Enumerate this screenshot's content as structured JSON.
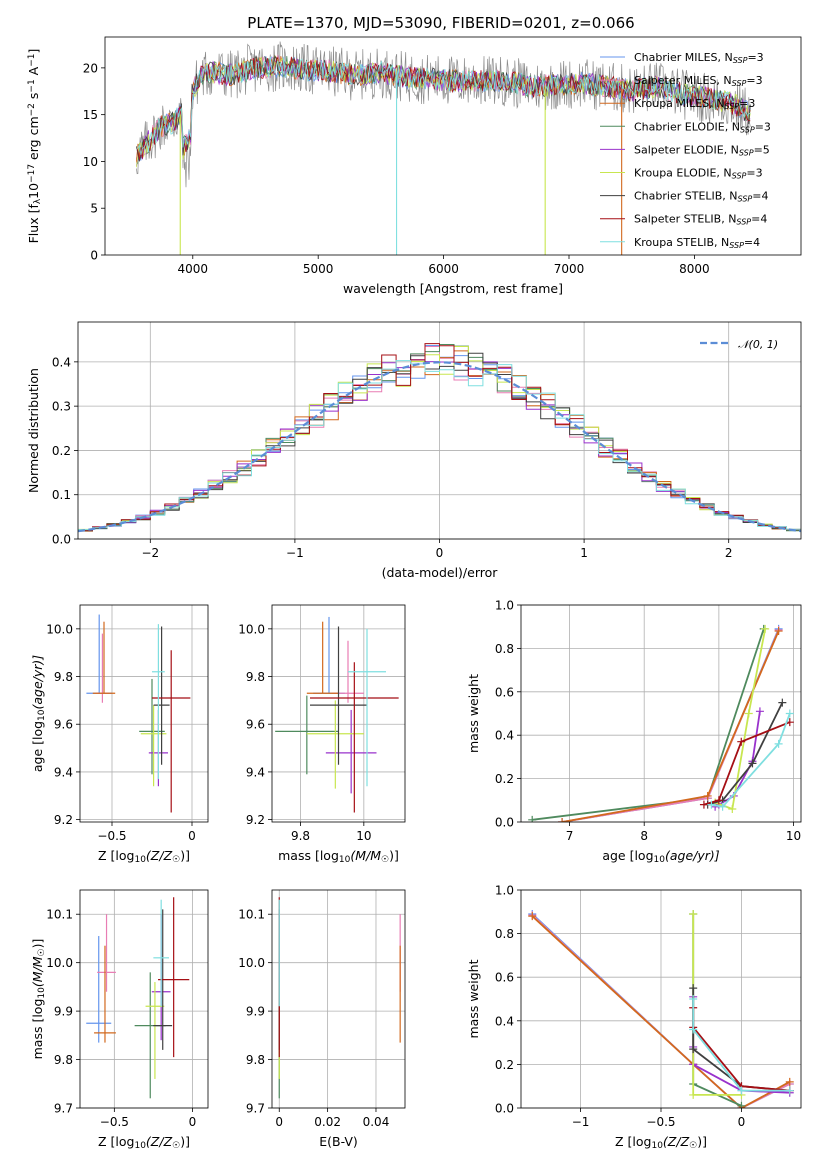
{
  "title": "PLATE=1370, MJD=53090, FIBERID=0201, z=0.066",
  "colors": {
    "chabrier_miles": "#6495ED",
    "salpeter_miles": "#E87DB4",
    "kroupa_miles": "#D2691E",
    "chabrier_elodie": "#4F8A5E",
    "salpeter_elodie": "#9932CC",
    "kroupa_elodie": "#C8E650",
    "chabrier_stelib": "#404040",
    "salpeter_stelib": "#A50F15",
    "kroupa_stelib": "#7FDFE0",
    "normal_line": "#5B8DD6"
  },
  "legend_spectrum": [
    {
      "text": "Chabrier MILES, N",
      "sub": "SSP",
      "suffix": "=3",
      "color": "#6495ED"
    },
    {
      "text": "Salpeter MILES, N",
      "sub": "SSP",
      "suffix": "=3",
      "color": "#E87DB4"
    },
    {
      "text": "Kroupa MILES, N",
      "sub": "SSP",
      "suffix": "=3",
      "color": "#D2691E"
    },
    {
      "text": "Chabrier ELODIE, N",
      "sub": "SSP",
      "suffix": "=3",
      "color": "#4F8A5E"
    },
    {
      "text": "Salpeter ELODIE, N",
      "sub": "SSP",
      "suffix": "=5",
      "color": "#9932CC"
    },
    {
      "text": "Kroupa ELODIE, N",
      "sub": "SSP",
      "suffix": "=3",
      "color": "#C8E650"
    },
    {
      "text": "Chabrier STELIB, N",
      "sub": "SSP",
      "suffix": "=4",
      "color": "#404040"
    },
    {
      "text": "Salpeter STELIB, N",
      "sub": "SSP",
      "suffix": "=4",
      "color": "#A50F15"
    },
    {
      "text": "Kroupa STELIB, N",
      "sub": "SSP",
      "suffix": "=4",
      "color": "#7FDFE0"
    }
  ],
  "legend_hist": {
    "text": "𝒩(0, 1)"
  },
  "chart_data": [
    {
      "id": "spectrum",
      "type": "line",
      "xlabel": "wavelength [Angstrom, rest frame]",
      "ylabel_parts": [
        "Flux [f",
        "λ",
        "10",
        "−17",
        " erg cm",
        "−2",
        " s",
        "−1",
        " A",
        "−1",
        "]"
      ],
      "xlim": [
        3300,
        8850
      ],
      "ylim": [
        0,
        23.3
      ],
      "xticks": [
        4000,
        5000,
        6000,
        7000,
        8000
      ],
      "yticks": [
        0,
        5,
        10,
        15,
        20
      ],
      "continuum": {
        "x": [
          3550,
          3650,
          3750,
          3850,
          3950,
          4050,
          4150,
          4300,
          4500,
          4700,
          4900,
          5100,
          5300,
          5500,
          5700,
          5900,
          6100,
          6300,
          6500,
          6700,
          6900,
          7100,
          7300,
          7500,
          7700,
          7900,
          8100,
          8300,
          8450
        ],
        "y": [
          10.5,
          12.2,
          13.8,
          14.2,
          15.8,
          19.0,
          19.6,
          19.2,
          20.0,
          20.2,
          19.8,
          19.6,
          19.2,
          19.5,
          19.0,
          18.8,
          18.6,
          18.6,
          18.6,
          18.0,
          18.2,
          18.4,
          18.0,
          17.6,
          18.0,
          17.2,
          16.8,
          16.2,
          15.0
        ]
      },
      "dips": [
        {
          "x": 3900,
          "y": 0,
          "color": "#C8E650"
        },
        {
          "x": 5625,
          "y": 0,
          "color": "#7FDFE0"
        },
        {
          "x": 6810,
          "y": 0,
          "color": "#C8E650"
        },
        {
          "x": 7420,
          "y": 0,
          "color": "#D2691E"
        }
      ]
    },
    {
      "id": "residuals",
      "type": "bar",
      "xlabel": "(data-model)/error",
      "ylabel": "Normed distribution",
      "xlim": [
        -2.5,
        2.5
      ],
      "ylim": [
        0,
        0.49
      ],
      "xticks": [
        -2,
        -1,
        0,
        1,
        2
      ],
      "yticks": [
        0.0,
        0.1,
        0.2,
        0.3,
        0.4
      ],
      "bin_width": 0.1,
      "normal": {
        "mu": 0,
        "sigma": 1
      }
    },
    {
      "id": "age_vs_z",
      "type": "scatter",
      "xlabel_parts": [
        "Z [log",
        "10",
        "(Z/Z",
        "☉",
        ")]"
      ],
      "ylabel_parts": [
        "age  [log",
        "10",
        "(age/yr)]"
      ],
      "xlim": [
        -0.7,
        0.1
      ],
      "ylim": [
        9.19,
        10.1
      ],
      "xticks": [
        -0.5,
        0.0
      ],
      "yticks": [
        9.2,
        9.4,
        9.6,
        9.8,
        10.0
      ],
      "points": [
        {
          "x": -0.58,
          "y": 9.73,
          "xerr": 0.08,
          "yerr": [
            0.0,
            0.33
          ],
          "color": "#6495ED"
        },
        {
          "x": -0.56,
          "y": 9.73,
          "xerr": 0.04,
          "yerr": [
            0.04,
            0.25
          ],
          "color": "#E87DB4"
        },
        {
          "x": -0.55,
          "y": 9.73,
          "xerr": 0.07,
          "yerr": [
            0.0,
            0.3
          ],
          "color": "#D2691E"
        },
        {
          "x": -0.25,
          "y": 9.57,
          "xerr": 0.08,
          "yerr": [
            0.18,
            0.22
          ],
          "color": "#4F8A5E"
        },
        {
          "x": -0.21,
          "y": 9.48,
          "xerr": 0.06,
          "yerr": [
            0.14,
            0.18
          ],
          "color": "#9932CC"
        },
        {
          "x": -0.24,
          "y": 9.56,
          "xerr": 0.08,
          "yerr": [
            0.22,
            0.12
          ],
          "color": "#C8E650"
        },
        {
          "x": -0.19,
          "y": 9.68,
          "xerr": 0.05,
          "yerr": [
            0.25,
            0.33
          ],
          "color": "#404040"
        },
        {
          "x": -0.13,
          "y": 9.71,
          "xerr": 0.12,
          "yerr": [
            0.48,
            0.2
          ],
          "color": "#A50F15"
        },
        {
          "x": -0.21,
          "y": 9.82,
          "xerr": 0.04,
          "yerr": [
            0.45,
            0.2
          ],
          "color": "#7FDFE0"
        }
      ]
    },
    {
      "id": "age_vs_mass",
      "type": "scatter",
      "xlabel_parts": [
        "mass [log",
        "10",
        "(M/M",
        "☉",
        ")]"
      ],
      "xlim": [
        9.71,
        10.13
      ],
      "ylim": [
        9.19,
        10.1
      ],
      "xticks": [
        9.8,
        10.0
      ],
      "yticks": [
        9.2,
        9.4,
        9.6,
        9.8,
        10.0
      ],
      "points": [
        {
          "x": 9.89,
          "y": 9.73,
          "xerr": 0.05,
          "yerr": [
            0.0,
            0.32
          ],
          "color": "#6495ED"
        },
        {
          "x": 9.95,
          "y": 9.73,
          "xerr": 0.05,
          "yerr": [
            0.04,
            0.22
          ],
          "color": "#E87DB4"
        },
        {
          "x": 9.87,
          "y": 9.73,
          "xerr": 0.05,
          "yerr": [
            0.0,
            0.3
          ],
          "color": "#D2691E"
        },
        {
          "x": 9.82,
          "y": 9.57,
          "xerr": 0.1,
          "yerr": [
            0.18,
            0.15
          ],
          "color": "#4F8A5E"
        },
        {
          "x": 9.96,
          "y": 9.48,
          "xerr": 0.08,
          "yerr": [
            0.17,
            0.18
          ],
          "color": "#9932CC"
        },
        {
          "x": 9.91,
          "y": 9.56,
          "xerr": 0.09,
          "yerr": [
            0.23,
            0.14
          ],
          "color": "#C8E650"
        },
        {
          "x": 9.92,
          "y": 9.68,
          "xerr": 0.09,
          "yerr": [
            0.25,
            0.33
          ],
          "color": "#404040"
        },
        {
          "x": 9.97,
          "y": 9.71,
          "xerr": 0.14,
          "yerr": [
            0.48,
            0.15
          ],
          "color": "#A50F15"
        },
        {
          "x": 10.01,
          "y": 9.82,
          "xerr": 0.06,
          "yerr": [
            0.48,
            0.18
          ],
          "color": "#7FDFE0"
        }
      ]
    },
    {
      "id": "weight_vs_age",
      "type": "line",
      "xlabel_parts": [
        "age  [log",
        "10",
        "(age/yr)]"
      ],
      "ylabel": "mass weight",
      "xlim": [
        6.35,
        10.1
      ],
      "ylim": [
        0,
        1.0
      ],
      "xticks": [
        7,
        8,
        9,
        10
      ],
      "yticks": [
        0.0,
        0.2,
        0.4,
        0.6,
        0.8,
        1.0
      ],
      "series": [
        {
          "color": "#4F8A5E",
          "x": [
            6.5,
            8.85,
            9.6
          ],
          "y": [
            0.01,
            0.11,
            0.89
          ]
        },
        {
          "color": "#6495ED",
          "x": [
            6.9,
            8.85,
            9.8
          ],
          "y": [
            0.0,
            0.11,
            0.89
          ]
        },
        {
          "color": "#E87DB4",
          "x": [
            6.9,
            8.85,
            9.8
          ],
          "y": [
            0.0,
            0.11,
            0.885
          ]
        },
        {
          "color": "#D2691E",
          "x": [
            6.9,
            8.85,
            9.8
          ],
          "y": [
            0.0,
            0.12,
            0.88
          ]
        },
        {
          "color": "#9932CC",
          "x": [
            8.95,
            9.0,
            9.2,
            9.45,
            9.55
          ],
          "y": [
            0.07,
            0.08,
            0.12,
            0.28,
            0.51
          ]
        },
        {
          "color": "#C8E650",
          "x": [
            8.95,
            9.18,
            9.4,
            9.62
          ],
          "y": [
            0.09,
            0.06,
            0.5,
            0.89
          ]
        },
        {
          "color": "#404040",
          "x": [
            8.85,
            9.05,
            9.45,
            9.85
          ],
          "y": [
            0.08,
            0.1,
            0.27,
            0.55
          ]
        },
        {
          "color": "#A50F15",
          "x": [
            8.8,
            9.0,
            9.3,
            9.95
          ],
          "y": [
            0.08,
            0.1,
            0.37,
            0.46
          ]
        },
        {
          "color": "#7FDFE0",
          "x": [
            8.9,
            9.05,
            9.8,
            9.95
          ],
          "y": [
            0.08,
            0.07,
            0.36,
            0.5
          ]
        }
      ]
    },
    {
      "id": "mass_vs_z",
      "type": "scatter",
      "xlabel_parts": [
        "Z [log",
        "10",
        "(Z/Z",
        "☉",
        ")]"
      ],
      "ylabel_parts": [
        "mass [log",
        "10",
        "(M/M",
        "☉",
        ")]"
      ],
      "xlim": [
        -0.72,
        0.1
      ],
      "ylim": [
        9.7,
        10.15
      ],
      "xticks": [
        -0.5,
        0.0
      ],
      "yticks": [
        9.7,
        9.8,
        9.9,
        10.0,
        10.1
      ],
      "points": [
        {
          "x": -0.6,
          "y": 9.875,
          "xerr": 0.08,
          "yerr": [
            0.04,
            0.18
          ],
          "color": "#6495ED"
        },
        {
          "x": -0.55,
          "y": 9.98,
          "xerr": 0.06,
          "yerr": [
            0.04,
            0.12
          ],
          "color": "#E87DB4"
        },
        {
          "x": -0.56,
          "y": 9.855,
          "xerr": 0.07,
          "yerr": [
            0.02,
            0.18
          ],
          "color": "#D2691E"
        },
        {
          "x": -0.27,
          "y": 9.87,
          "xerr": 0.1,
          "yerr": [
            0.15,
            0.11
          ],
          "color": "#4F8A5E"
        },
        {
          "x": -0.2,
          "y": 9.94,
          "xerr": 0.06,
          "yerr": [
            0.1,
            0.16
          ],
          "color": "#9932CC"
        },
        {
          "x": -0.24,
          "y": 9.91,
          "xerr": 0.06,
          "yerr": [
            0.15,
            0.05
          ],
          "color": "#C8E650"
        },
        {
          "x": -0.19,
          "y": 9.87,
          "xerr": 0.06,
          "yerr": [
            0.05,
            0.24
          ],
          "color": "#404040"
        },
        {
          "x": -0.12,
          "y": 9.965,
          "xerr": 0.1,
          "yerr": [
            0.16,
            0.17
          ],
          "color": "#A50F15"
        },
        {
          "x": -0.2,
          "y": 10.01,
          "xerr": 0.05,
          "yerr": [
            0.1,
            0.12
          ],
          "color": "#7FDFE0"
        }
      ]
    },
    {
      "id": "mass_vs_ebv",
      "type": "scatter",
      "xlabel": "E(B-V)",
      "xlim": [
        -0.003,
        0.052
      ],
      "ylim": [
        9.7,
        10.15
      ],
      "xticks": [
        0.0,
        0.02,
        0.04
      ],
      "yticks": [
        9.7,
        9.8,
        9.9,
        10.0,
        10.1
      ],
      "points": [
        {
          "x": 0.0,
          "y": 9.875,
          "xerr": 0,
          "yerr": [
            0.04,
            0.18
          ],
          "color": "#6495ED"
        },
        {
          "x": 0.05,
          "y": 9.98,
          "xerr": 0,
          "yerr": [
            0.04,
            0.12
          ],
          "color": "#E87DB4"
        },
        {
          "x": 0.05,
          "y": 9.855,
          "xerr": 0,
          "yerr": [
            0.02,
            0.18
          ],
          "color": "#D2691E"
        },
        {
          "x": 0.0,
          "y": 9.87,
          "xerr": 0,
          "yerr": [
            0.15,
            0.11
          ],
          "color": "#4F8A5E"
        },
        {
          "x": 0.0,
          "y": 9.94,
          "xerr": 0,
          "yerr": [
            0.1,
            0.16
          ],
          "color": "#9932CC"
        },
        {
          "x": 0.0,
          "y": 9.91,
          "xerr": 0,
          "yerr": [
            0.15,
            0.05
          ],
          "color": "#C8E650"
        },
        {
          "x": 0.0,
          "y": 9.87,
          "xerr": 0,
          "yerr": [
            0.05,
            0.24
          ],
          "color": "#404040"
        },
        {
          "x": 0.0,
          "y": 9.965,
          "xerr": 0,
          "yerr": [
            0.16,
            0.17
          ],
          "color": "#A50F15"
        },
        {
          "x": 0.0,
          "y": 10.01,
          "xerr": 0,
          "yerr": [
            0.1,
            0.12
          ],
          "color": "#7FDFE0"
        }
      ]
    },
    {
      "id": "weight_vs_z",
      "type": "line",
      "xlabel_parts": [
        "Z [log",
        "10",
        "(Z/Z",
        "☉",
        ")]"
      ],
      "ylabel": "mass weight",
      "xlim": [
        -1.37,
        0.37
      ],
      "ylim": [
        0,
        1.0
      ],
      "xticks": [
        -1.0,
        -0.5,
        0.0
      ],
      "yticks": [
        0.0,
        0.2,
        0.4,
        0.6,
        0.8,
        1.0
      ],
      "series": [
        {
          "color": "#6495ED",
          "x": [
            -1.3,
            -0.3,
            0.0,
            0.3
          ],
          "y": [
            0.89,
            0.2,
            0.0,
            0.11
          ]
        },
        {
          "color": "#E87DB4",
          "x": [
            -1.3,
            -0.3,
            0.0,
            0.3
          ],
          "y": [
            0.885,
            0.2,
            0.0,
            0.11
          ]
        },
        {
          "color": "#D2691E",
          "x": [
            -1.3,
            -0.3,
            0.0,
            0.3
          ],
          "y": [
            0.88,
            0.2,
            0.0,
            0.12
          ]
        },
        {
          "color": "#4F8A5E",
          "x": [
            -0.3,
            -0.3,
            0.0
          ],
          "y": [
            0.89,
            0.11,
            0.01
          ]
        },
        {
          "color": "#9932CC",
          "x": [
            -0.3,
            -0.3,
            -0.3,
            0.0,
            0.3
          ],
          "y": [
            0.51,
            0.28,
            0.2,
            0.08,
            0.07
          ]
        },
        {
          "color": "#C8E650",
          "x": [
            -0.3,
            -0.3,
            0.0
          ],
          "y": [
            0.89,
            0.06,
            0.06
          ]
        },
        {
          "color": "#404040",
          "x": [
            -0.3,
            -0.3,
            0.0,
            0.3
          ],
          "y": [
            0.55,
            0.27,
            0.1,
            0.08
          ]
        },
        {
          "color": "#A50F15",
          "x": [
            -0.3,
            -0.3,
            0.0,
            0.3
          ],
          "y": [
            0.46,
            0.37,
            0.1,
            0.08
          ]
        },
        {
          "color": "#7FDFE0",
          "x": [
            -0.3,
            -0.3,
            0.0,
            0.3
          ],
          "y": [
            0.5,
            0.36,
            0.08,
            0.08
          ]
        }
      ]
    }
  ]
}
